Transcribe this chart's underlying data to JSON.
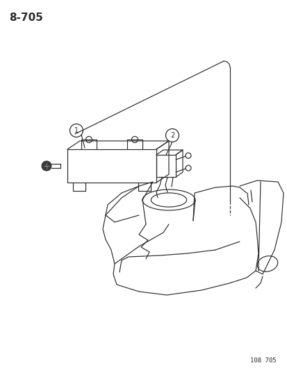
{
  "title": "8-705",
  "footer": "108 705",
  "bg_color": "#ffffff",
  "line_color": "#2a2a2a",
  "title_fontsize": 11,
  "footer_fontsize": 6.5
}
